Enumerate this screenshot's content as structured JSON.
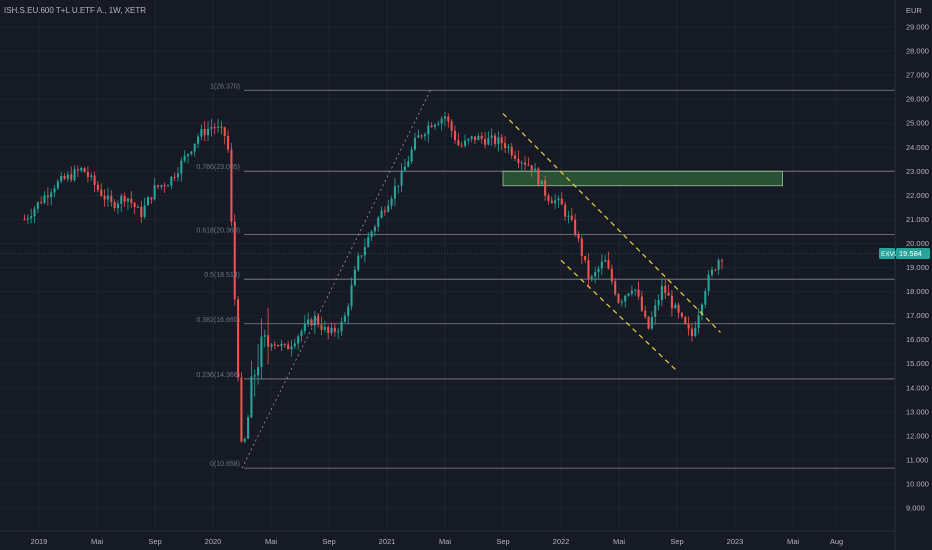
{
  "header": {
    "symbol_title": "ISH.S.EU.600 T+L U.ETF A., 1W, XETR",
    "currency": "EUR"
  },
  "colors": {
    "background": "#161a25",
    "up": "#26a69a",
    "down": "#ef5350",
    "grid": "#1f2330",
    "fib_line": "#a9abb3",
    "channel": "#e6d23a",
    "zone_fill": "#2e5a3a",
    "zone_border": "#9ec59a",
    "price_tag": "#26a69a"
  },
  "chart_data": {
    "type": "candlestick",
    "y_axis": {
      "min": 8.5,
      "max": 29.6,
      "ticks": [
        "9.000",
        "10.000",
        "11.000",
        "12.000",
        "13.000",
        "14.000",
        "15.000",
        "16.000",
        "17.000",
        "18.000",
        "19.000",
        "20.000",
        "21.000",
        "22.000",
        "23.000",
        "24.000",
        "25.000",
        "26.000",
        "27.000",
        "28.000",
        "29.000"
      ]
    },
    "x_axis": {
      "labels": [
        {
          "label": "2019",
          "date": "2019-01"
        },
        {
          "label": "Mai",
          "date": "2019-05"
        },
        {
          "label": "Sep",
          "date": "2019-09"
        },
        {
          "label": "2020",
          "date": "2020-01"
        },
        {
          "label": "Mai",
          "date": "2020-05"
        },
        {
          "label": "Sep",
          "date": "2020-09"
        },
        {
          "label": "2021",
          "date": "2021-01"
        },
        {
          "label": "Mai",
          "date": "2021-05"
        },
        {
          "label": "Sep",
          "date": "2021-09"
        },
        {
          "label": "2022",
          "date": "2022-01"
        },
        {
          "label": "Mai",
          "date": "2022-05"
        },
        {
          "label": "Sep",
          "date": "2022-09"
        },
        {
          "label": "2023",
          "date": "2023-01"
        },
        {
          "label": "Mai",
          "date": "2023-05"
        },
        {
          "label": "Aug",
          "date": "2023-08"
        }
      ]
    },
    "fib_levels": [
      {
        "label": "1(26.370)",
        "value": 26.37
      },
      {
        "label": "0.786(23.005)",
        "value": 23.005
      },
      {
        "label": "0.618(20.368)",
        "value": 20.368
      },
      {
        "label": "0.5(18.514)",
        "value": 18.514
      },
      {
        "label": "0.382(16.660)",
        "value": 16.66
      },
      {
        "label": "0.236(14.366)",
        "value": 14.366
      },
      {
        "label": "0(10.658)",
        "value": 10.658
      }
    ],
    "last_price": {
      "symbol": "EXV9",
      "value": "19.584"
    },
    "candle_path": [
      [
        "2018-12",
        21.0
      ],
      [
        "2019-02",
        22.4
      ],
      [
        "2019-04",
        23.1
      ],
      [
        "2019-05",
        22.3
      ],
      [
        "2019-06",
        21.6
      ],
      [
        "2019-07",
        22.0
      ],
      [
        "2019-08",
        21.2
      ],
      [
        "2019-09",
        22.3
      ],
      [
        "2019-10",
        22.6
      ],
      [
        "2019-11",
        23.5
      ],
      [
        "2019-12",
        24.5
      ],
      [
        "2020-01",
        24.9
      ],
      [
        "2020-02",
        24.4
      ],
      [
        "2020-03",
        11.0
      ],
      [
        "2020-04",
        15.2
      ],
      [
        "2020-05",
        16.0
      ],
      [
        "2020-06",
        15.6
      ],
      [
        "2020-07",
        16.3
      ],
      [
        "2020-08",
        16.9
      ],
      [
        "2020-09",
        16.2
      ],
      [
        "2020-10",
        16.7
      ],
      [
        "2020-11",
        19.3
      ],
      [
        "2020-12",
        20.6
      ],
      [
        "2021-01",
        21.7
      ],
      [
        "2021-02",
        22.8
      ],
      [
        "2021-03",
        24.3
      ],
      [
        "2021-04",
        25.0
      ],
      [
        "2021-05",
        25.3
      ],
      [
        "2021-06",
        24.0
      ],
      [
        "2021-07",
        24.4
      ],
      [
        "2021-08",
        24.3
      ],
      [
        "2021-09",
        24.2
      ],
      [
        "2021-10",
        23.6
      ],
      [
        "2021-11",
        23.2
      ],
      [
        "2021-12",
        22.0
      ],
      [
        "2022-01",
        21.6
      ],
      [
        "2022-02",
        20.5
      ],
      [
        "2022-03",
        18.4
      ],
      [
        "2022-04",
        19.3
      ],
      [
        "2022-05",
        17.6
      ],
      [
        "2022-06",
        18.3
      ],
      [
        "2022-07",
        16.4
      ],
      [
        "2022-08",
        18.2
      ],
      [
        "2022-09",
        17.1
      ],
      [
        "2022-10",
        16.1
      ],
      [
        "2022-11",
        18.3
      ],
      [
        "2022-12",
        19.5
      ]
    ],
    "annotations": {
      "fib_anchor_line": {
        "from": [
          "2020-03",
          10.658
        ],
        "to": [
          "2021-04",
          26.37
        ]
      },
      "channel_upper": {
        "from": [
          "2021-09",
          25.4
        ],
        "to": [
          "2022-12",
          16.3
        ]
      },
      "channel_lower": {
        "from": [
          "2022-01",
          19.3
        ],
        "to": [
          "2022-09",
          14.7
        ]
      },
      "resistance_zone": {
        "from": [
          "2021-09",
          23.0
        ],
        "to": [
          "2023-06",
          22.4
        ]
      }
    }
  }
}
